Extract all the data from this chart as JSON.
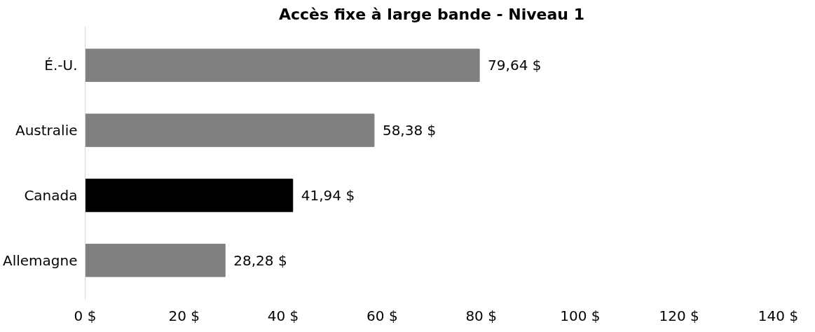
{
  "chart_data": {
    "type": "bar",
    "orientation": "horizontal",
    "title": "Accès fixe à large bande - Niveau 1",
    "categories": [
      "É.-U.",
      "Australie",
      "Canada",
      "Allemagne"
    ],
    "values": [
      79.64,
      58.38,
      41.94,
      28.28
    ],
    "colors": [
      "#808080",
      "#808080",
      "#000000",
      "#808080"
    ],
    "value_labels": [
      "79,64 $",
      "58,38 $",
      "41,94 $",
      "28,28 $"
    ],
    "xlim": [
      0,
      140
    ],
    "xticks": [
      {
        "value": 0,
        "label": "0 $"
      },
      {
        "value": 20,
        "label": "20 $"
      },
      {
        "value": 40,
        "label": "40 $"
      },
      {
        "value": 60,
        "label": "60 $"
      },
      {
        "value": 80,
        "label": "80 $"
      },
      {
        "value": 100,
        "label": "100 $"
      },
      {
        "value": 120,
        "label": "120 $"
      },
      {
        "value": 140,
        "label": "140 $"
      }
    ],
    "grid": false
  }
}
